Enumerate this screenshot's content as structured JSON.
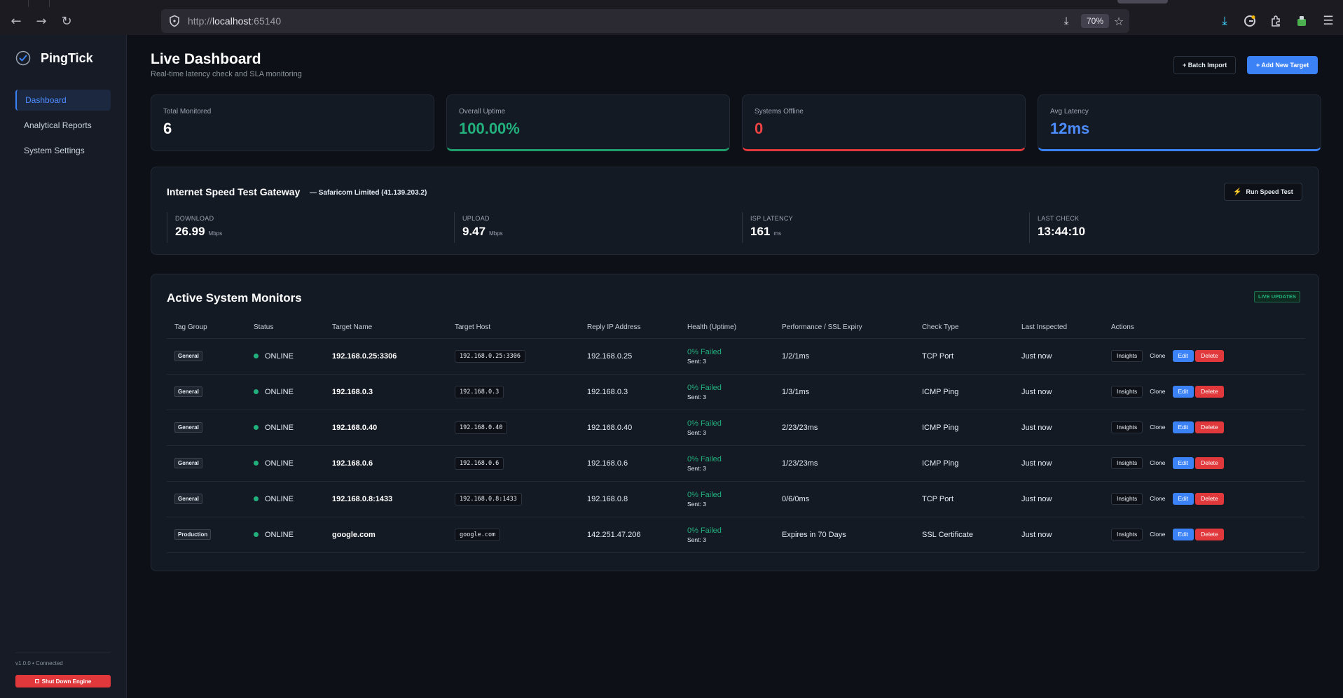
{
  "browser": {
    "url_prefix": "http://",
    "url_host": "localhost",
    "url_port": ":65140",
    "zoom": "70%"
  },
  "sidebar": {
    "brand": "PingTick",
    "items": [
      {
        "label": "Dashboard",
        "active": true
      },
      {
        "label": "Analytical Reports",
        "active": false
      },
      {
        "label": "System Settings",
        "active": false
      }
    ],
    "version": "v1.0.0 • Connected",
    "shutdown_label": "Shut Down Engine"
  },
  "header": {
    "title": "Live Dashboard",
    "subtitle": "Real-time latency check and SLA monitoring",
    "batch_import_label": "+ Batch Import",
    "add_target_label": "+ Add New Target"
  },
  "stats": [
    {
      "label": "Total Monitored",
      "value": "6",
      "accent": "none"
    },
    {
      "label": "Overall Uptime",
      "value": "100.00%",
      "accent": "#22b07d"
    },
    {
      "label": "Systems Offline",
      "value": "0",
      "accent": "#ef4444"
    },
    {
      "label": "Avg Latency",
      "value": "12ms",
      "accent": "#4d8dff"
    }
  ],
  "speed_test": {
    "title": "Internet Speed Test Gateway",
    "isp": "— Safaricom Limited (41.139.203.2)",
    "run_label": "Run Speed Test",
    "metrics": [
      {
        "label": "DOWNLOAD",
        "value": "26.99",
        "unit": "Mbps"
      },
      {
        "label": "UPLOAD",
        "value": "9.47",
        "unit": "Mbps"
      },
      {
        "label": "ISP LATENCY",
        "value": "161",
        "unit": "ms"
      },
      {
        "label": "LAST CHECK",
        "value": "13:44:10",
        "unit": ""
      }
    ]
  },
  "monitors": {
    "title": "Active System Monitors",
    "live_badge": "LIVE UPDATES",
    "columns": [
      "Tag Group",
      "Status",
      "Target Name",
      "Target Host",
      "Reply IP Address",
      "Health (Uptime)",
      "Performance / SSL Expiry",
      "Check Type",
      "Last Inspected",
      "Actions"
    ],
    "action_labels": {
      "insights": "Insights",
      "clone": "Clone",
      "edit": "Edit",
      "delete": "Delete"
    },
    "rows": [
      {
        "tag": "General",
        "status": "ONLINE",
        "name": "192.168.0.25:3306",
        "host": "192.168.0.25:3306",
        "ip": "192.168.0.25",
        "health": "0% Failed",
        "sent": "Sent: 3",
        "perf": "1/2/1ms",
        "type": "TCP Port",
        "last": "Just now"
      },
      {
        "tag": "General",
        "status": "ONLINE",
        "name": "192.168.0.3",
        "host": "192.168.0.3",
        "ip": "192.168.0.3",
        "health": "0% Failed",
        "sent": "Sent: 3",
        "perf": "1/3/1ms",
        "type": "ICMP Ping",
        "last": "Just now"
      },
      {
        "tag": "General",
        "status": "ONLINE",
        "name": "192.168.0.40",
        "host": "192.168.0.40",
        "ip": "192.168.0.40",
        "health": "0% Failed",
        "sent": "Sent: 3",
        "perf": "2/23/23ms",
        "type": "ICMP Ping",
        "last": "Just now"
      },
      {
        "tag": "General",
        "status": "ONLINE",
        "name": "192.168.0.6",
        "host": "192.168.0.6",
        "ip": "192.168.0.6",
        "health": "0% Failed",
        "sent": "Sent: 3",
        "perf": "1/23/23ms",
        "type": "ICMP Ping",
        "last": "Just now"
      },
      {
        "tag": "General",
        "status": "ONLINE",
        "name": "192.168.0.8:1433",
        "host": "192.168.0.8:1433",
        "ip": "192.168.0.8",
        "health": "0% Failed",
        "sent": "Sent: 3",
        "perf": "0/6/0ms",
        "type": "TCP Port",
        "last": "Just now"
      },
      {
        "tag": "Production",
        "status": "ONLINE",
        "name": "google.com",
        "host": "google.com",
        "ip": "142.251.47.206",
        "health": "0% Failed",
        "sent": "Sent: 3",
        "perf": "Expires in 70 Days",
        "type": "SSL Certificate",
        "last": "Just now"
      }
    ]
  }
}
